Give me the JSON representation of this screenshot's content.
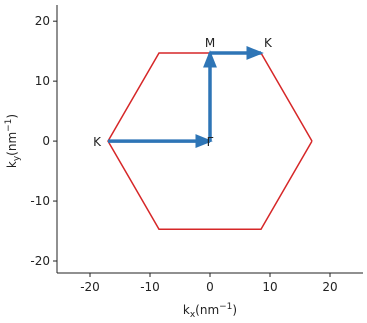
{
  "chart_data": {
    "type": "line",
    "xlabel": [
      "k",
      "x",
      "(nm",
      "−1",
      ")"
    ],
    "ylabel": [
      "k",
      "y",
      "(nm",
      "−1",
      ")"
    ],
    "xlim": [
      -25.5,
      25.5
    ],
    "ylim": [
      -22,
      22.7
    ],
    "xticks": [
      -20,
      -10,
      0,
      10,
      20
    ],
    "yticks": [
      -20,
      -10,
      0,
      10,
      20
    ],
    "series": [
      {
        "color": "#d62728",
        "x": [
          17,
          8.5,
          -8.5,
          -17,
          -8.5,
          8.5,
          17
        ],
        "y": [
          0,
          14.7,
          14.7,
          0,
          -14.7,
          -14.7,
          0
        ]
      }
    ],
    "arrows": {
      "color": "#2e75b6",
      "paths": [
        {
          "x": [
            -17,
            0
          ],
          "y": [
            0,
            0
          ]
        },
        {
          "x": [
            0,
            0
          ],
          "y": [
            0,
            14.7
          ]
        },
        {
          "x": [
            0,
            8.5
          ],
          "y": [
            14.7,
            14.7
          ]
        }
      ]
    },
    "annotations": [
      {
        "text": "K",
        "x": -17,
        "y": 0,
        "ha": "right",
        "va": "center"
      },
      {
        "text": "Γ",
        "x": 0,
        "y": 0,
        "ha": "center",
        "va": "center"
      },
      {
        "text": "M",
        "x": 0,
        "y": 14.7,
        "ha": "center",
        "va": "bottom"
      },
      {
        "text": "K",
        "x": 8.5,
        "y": 14.7,
        "ha": "left",
        "va": "bottom"
      }
    ]
  }
}
